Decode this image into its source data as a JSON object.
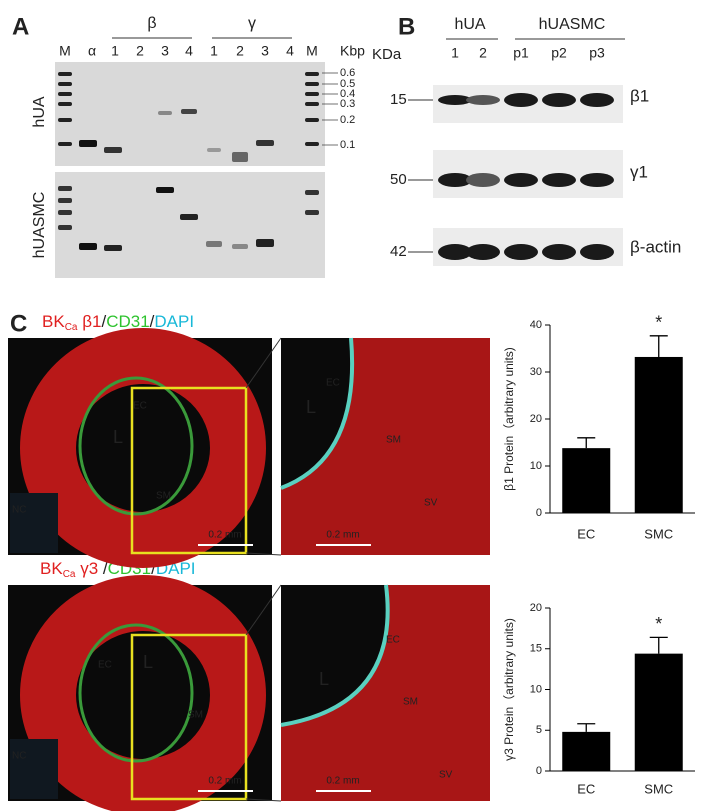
{
  "panel_a": {
    "label": "A",
    "lanes": [
      "M",
      "α",
      "1",
      "2",
      "3",
      "4",
      "1",
      "2",
      "3",
      "4",
      "M"
    ],
    "groups": [
      "β",
      "γ"
    ],
    "unit": "Kbp",
    "sizes": [
      "0.6",
      "0.5",
      "0.4",
      "0.3",
      "0.2",
      "0.1"
    ],
    "rows": [
      "hUA",
      "hUASMC"
    ]
  },
  "panel_b": {
    "label": "B",
    "unit": "KDa",
    "groups": [
      "hUA",
      "hUASMC"
    ],
    "lanes": [
      "1",
      "2",
      "p1",
      "p2",
      "p3"
    ],
    "weights": [
      "15",
      "50",
      "42"
    ],
    "proteins": [
      "β1",
      "γ1",
      "β-actin"
    ]
  },
  "panel_c": {
    "label": "C",
    "titles": [
      [
        "BK",
        "Ca",
        " β1",
        "/",
        "CD31",
        "/",
        "DAPI"
      ],
      [
        "BK",
        "Ca",
        " γ3 ",
        "/",
        "CD31",
        "/",
        "DAPI"
      ]
    ],
    "images": [
      [
        "EC",
        "L",
        "SM",
        "NC",
        "0.2 mm"
      ],
      [
        "EC",
        "L",
        "SM",
        "SV",
        "0.2 mm"
      ],
      [
        "EC",
        "L",
        "SM",
        "NC",
        "0.2 mm"
      ],
      [
        "EC",
        "L",
        "SM",
        "SV",
        "0.2 mm"
      ]
    ]
  },
  "chart_data": [
    {
      "type": "bar",
      "y_label": "β1 Protein（arbitrary units)",
      "categories": [
        "EC",
        "SMC"
      ],
      "values": [
        13.8,
        33.2
      ],
      "errors": [
        2.2,
        4.5
      ],
      "color": "#000000",
      "ylim": [
        0,
        40
      ],
      "yticks": [
        0,
        10,
        20,
        30,
        40
      ],
      "annotations": [
        "*"
      ]
    },
    {
      "type": "bar",
      "y_label": "γ3 Protein（arbitrary units)",
      "categories": [
        "EC",
        "SMC"
      ],
      "values": [
        4.8,
        14.4
      ],
      "errors": [
        1.0,
        2.0
      ],
      "color": "#000000",
      "ylim": [
        0,
        20
      ],
      "yticks": [
        0,
        5,
        10,
        15,
        20
      ],
      "annotations": [
        "*"
      ]
    }
  ]
}
